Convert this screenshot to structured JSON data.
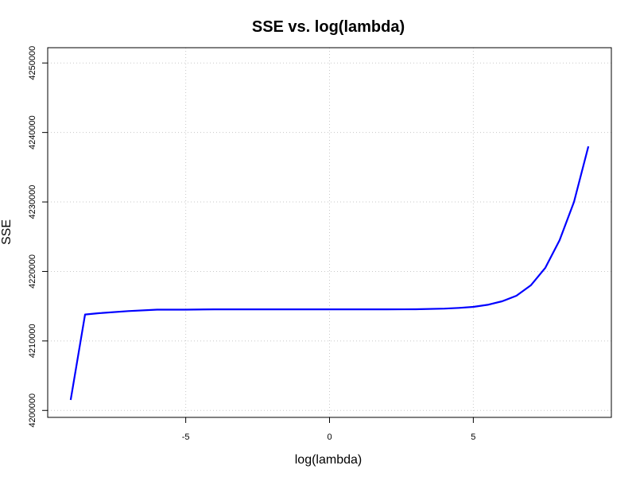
{
  "chart_data": {
    "type": "line",
    "title": "SSE vs. log(lambda)",
    "xlabel": "log(lambda)",
    "ylabel": "SSE",
    "xlim": [
      -9.8,
      9.8
    ],
    "ylim": [
      4199000,
      4252200
    ],
    "xticks": [
      -5,
      0,
      5
    ],
    "yticks": [
      4200000,
      4210000,
      4220000,
      4230000,
      4240000,
      4250000
    ],
    "grid": true,
    "series": [
      {
        "color": "#0000ff",
        "x": [
          -9.0,
          -8.5,
          -8.0,
          -7.0,
          -6.0,
          -5.0,
          -4.0,
          -3.0,
          -2.0,
          -1.0,
          0.0,
          1.0,
          2.0,
          3.0,
          4.0,
          4.5,
          5.0,
          5.5,
          6.0,
          6.5,
          7.0,
          7.5,
          8.0,
          8.5,
          9.0
        ],
        "y": [
          4201500,
          4213800,
          4214000,
          4214300,
          4214500,
          4214500,
          4214550,
          4214550,
          4214550,
          4214550,
          4214550,
          4214550,
          4214550,
          4214560,
          4214650,
          4214750,
          4214900,
          4215200,
          4215700,
          4216500,
          4218000,
          4220500,
          4224500,
          4230000,
          4238000
        ]
      }
    ]
  }
}
